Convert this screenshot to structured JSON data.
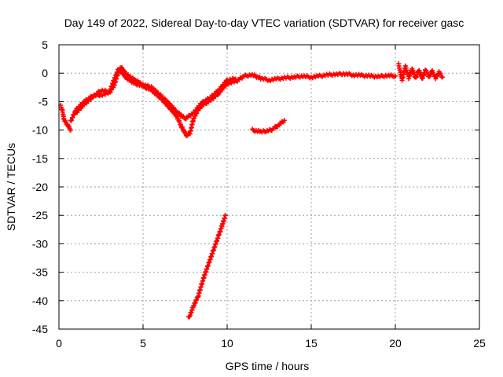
{
  "chart_data": {
    "type": "scatter",
    "title": "Day 149 of 2022, Sidereal Day-to-day VTEC variation (SDTVAR) for receiver gasc",
    "xlabel": "GPS time / hours",
    "ylabel": "SDTVAR / TECUs",
    "xlim": [
      0,
      25
    ],
    "ylim": [
      -45,
      5
    ],
    "xticks": [
      0,
      5,
      10,
      15,
      20,
      25
    ],
    "yticks": [
      5,
      0,
      -5,
      -10,
      -15,
      -20,
      -25,
      -30,
      -35,
      -40,
      -45
    ],
    "grid": true,
    "marker": "plus",
    "color": "#ff0000",
    "series": [
      {
        "name": "main-trace",
        "x": [
          0.7,
          1.0,
          1.5,
          2.0,
          2.5,
          3.0,
          3.3,
          3.5,
          3.7,
          4.0,
          4.5,
          5.0,
          5.5,
          6.0,
          6.5,
          7.0,
          7.3,
          7.6,
          7.8,
          8.0,
          8.3,
          8.6,
          9.0,
          9.5,
          10.0,
          10.5,
          11.0,
          11.5,
          12.0,
          12.5,
          13.0,
          13.5,
          14.0,
          14.5,
          15.0,
          15.5,
          16.0,
          16.5,
          17.0,
          17.5,
          18.0,
          18.5,
          19.0,
          19.5,
          20.0
        ],
        "y": [
          -8.5,
          -6.5,
          -5.0,
          -4.0,
          -3.8,
          -3.5,
          -2.0,
          0.0,
          0.3,
          -0.8,
          -1.8,
          -2.3,
          -3.0,
          -4.2,
          -5.8,
          -7.5,
          -9.5,
          -11.0,
          -10.5,
          -8.0,
          -6.3,
          -5.5,
          -4.8,
          -3.5,
          -1.8,
          -1.5,
          -0.5,
          -0.3,
          -0.9,
          -1.2,
          -1.0,
          -0.8,
          -0.7,
          -0.5,
          -0.7,
          -0.5,
          -0.3,
          -0.2,
          -0.1,
          -0.3,
          -0.4,
          -0.5,
          -0.6,
          -0.4,
          -0.5
        ]
      },
      {
        "name": "upper-trace",
        "x": [
          1.0,
          1.5,
          2.0,
          2.5,
          3.0,
          3.5,
          3.7,
          4.0,
          4.5,
          5.0,
          5.5,
          6.0,
          6.5,
          7.0,
          7.5,
          8.0,
          8.5,
          9.0,
          9.5,
          10.0,
          10.5
        ],
        "y": [
          -7.0,
          -5.5,
          -4.2,
          -3.0,
          -3.3,
          0.5,
          1.0,
          -0.2,
          -1.2,
          -2.0,
          -2.5,
          -3.8,
          -5.2,
          -6.8,
          -8.0,
          -7.0,
          -5.2,
          -4.3,
          -3.0,
          -1.2,
          -1.0
        ]
      },
      {
        "name": "lower-start",
        "x": [
          0.1,
          0.2,
          0.3,
          0.5,
          0.7
        ],
        "y": [
          -5.8,
          -6.4,
          -8.2,
          -9.0,
          -10.0
        ]
      },
      {
        "name": "end-block",
        "x": [
          20.2,
          20.4,
          20.6,
          20.8,
          21.0,
          21.2,
          21.4,
          21.6,
          21.8,
          22.0,
          22.2,
          22.4,
          22.6,
          22.8
        ],
        "y": [
          1.5,
          -1.2,
          1.2,
          -0.8,
          0.8,
          -0.9,
          0.5,
          -1.0,
          0.6,
          -0.6,
          0.3,
          -0.9,
          0.2,
          -0.7
        ]
      },
      {
        "name": "mid-arc",
        "x": [
          11.5,
          11.8,
          12.0,
          12.3,
          12.6,
          12.9,
          13.2,
          13.4
        ],
        "y": [
          -10.0,
          -10.2,
          -10.3,
          -10.2,
          -10.0,
          -9.5,
          -8.8,
          -8.3
        ]
      },
      {
        "name": "steep-line",
        "x": [
          7.7,
          7.8,
          8.0,
          8.3,
          8.6,
          8.9,
          9.2,
          9.5,
          9.7,
          9.9
        ],
        "y": [
          -43.0,
          -42.5,
          -41.0,
          -39.0,
          -36.0,
          -33.5,
          -31.0,
          -28.5,
          -26.8,
          -25.0
        ]
      }
    ]
  }
}
